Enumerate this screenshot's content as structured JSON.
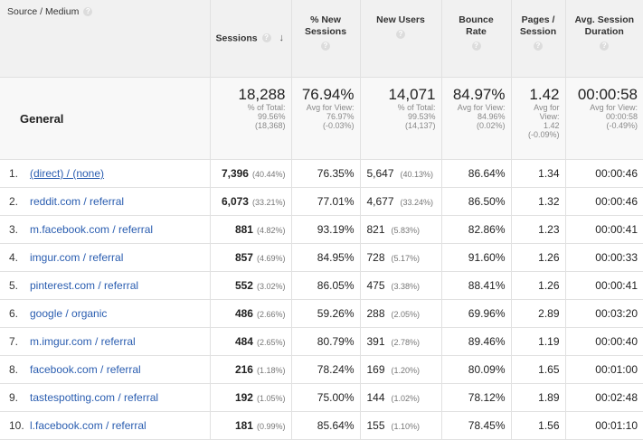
{
  "header": {
    "source": "Source / Medium",
    "sessions": "Sessions",
    "new_sessions": "% New Sessions",
    "new_users": "New Users",
    "bounce_rate": "Bounce Rate",
    "pages_session": "Pages / Session",
    "avg_duration": "Avg. Session Duration"
  },
  "summary": {
    "label": "General",
    "sessions": {
      "value": "18,288",
      "l1": "% of Total:",
      "l2": "99.56%",
      "l3": "(18,368)"
    },
    "new_sessions": {
      "value": "76.94%",
      "l1": "Avg for View:",
      "l2": "76.97%",
      "l3": "(-0.03%)"
    },
    "new_users": {
      "value": "14,071",
      "l1": "% of Total:",
      "l2": "99.53%",
      "l3": "(14,137)"
    },
    "bounce_rate": {
      "value": "84.97%",
      "l1": "Avg for View:",
      "l2": "84.96%",
      "l3": "(0.02%)"
    },
    "pages_session": {
      "value": "1.42",
      "l1": "Avg for",
      "l2": "View:",
      "l3": "1.42",
      "l4": "(-0.09%)"
    },
    "avg_duration": {
      "value": "00:00:58",
      "l1": "Avg for View:",
      "l2": "00:00:58",
      "l3": "(-0.49%)"
    }
  },
  "rows": [
    {
      "num": "1.",
      "source": "(direct) / (none)",
      "sessions": "7,396",
      "sessions_pct": "(40.44%)",
      "new_sessions": "76.35%",
      "new_users": "5,647",
      "new_users_pct": "(40.13%)",
      "bounce": "86.64%",
      "pages": "1.34",
      "duration": "00:00:46"
    },
    {
      "num": "2.",
      "source": "reddit.com / referral",
      "sessions": "6,073",
      "sessions_pct": "(33.21%)",
      "new_sessions": "77.01%",
      "new_users": "4,677",
      "new_users_pct": "(33.24%)",
      "bounce": "86.50%",
      "pages": "1.32",
      "duration": "00:00:46"
    },
    {
      "num": "3.",
      "source": "m.facebook.com / referral",
      "sessions": "881",
      "sessions_pct": "(4.82%)",
      "new_sessions": "93.19%",
      "new_users": "821",
      "new_users_pct": "(5.83%)",
      "bounce": "82.86%",
      "pages": "1.23",
      "duration": "00:00:41"
    },
    {
      "num": "4.",
      "source": "imgur.com / referral",
      "sessions": "857",
      "sessions_pct": "(4.69%)",
      "new_sessions": "84.95%",
      "new_users": "728",
      "new_users_pct": "(5.17%)",
      "bounce": "91.60%",
      "pages": "1.26",
      "duration": "00:00:33"
    },
    {
      "num": "5.",
      "source": "pinterest.com / referral",
      "sessions": "552",
      "sessions_pct": "(3.02%)",
      "new_sessions": "86.05%",
      "new_users": "475",
      "new_users_pct": "(3.38%)",
      "bounce": "88.41%",
      "pages": "1.26",
      "duration": "00:00:41"
    },
    {
      "num": "6.",
      "source": "google / organic",
      "sessions": "486",
      "sessions_pct": "(2.66%)",
      "new_sessions": "59.26%",
      "new_users": "288",
      "new_users_pct": "(2.05%)",
      "bounce": "69.96%",
      "pages": "2.89",
      "duration": "00:03:20"
    },
    {
      "num": "7.",
      "source": "m.imgur.com / referral",
      "sessions": "484",
      "sessions_pct": "(2.65%)",
      "new_sessions": "80.79%",
      "new_users": "391",
      "new_users_pct": "(2.78%)",
      "bounce": "89.46%",
      "pages": "1.19",
      "duration": "00:00:40"
    },
    {
      "num": "8.",
      "source": "facebook.com / referral",
      "sessions": "216",
      "sessions_pct": "(1.18%)",
      "new_sessions": "78.24%",
      "new_users": "169",
      "new_users_pct": "(1.20%)",
      "bounce": "80.09%",
      "pages": "1.65",
      "duration": "00:01:00"
    },
    {
      "num": "9.",
      "source": "tastespotting.com / referral",
      "sessions": "192",
      "sessions_pct": "(1.05%)",
      "new_sessions": "75.00%",
      "new_users": "144",
      "new_users_pct": "(1.02%)",
      "bounce": "78.12%",
      "pages": "1.89",
      "duration": "00:02:48"
    },
    {
      "num": "10.",
      "source": "l.facebook.com / referral",
      "sessions": "181",
      "sessions_pct": "(0.99%)",
      "new_sessions": "85.64%",
      "new_users": "155",
      "new_users_pct": "(1.10%)",
      "bounce": "78.45%",
      "pages": "1.56",
      "duration": "00:01:10"
    }
  ],
  "icons": {
    "help": "help-icon",
    "sort": "sort-down-arrow-icon"
  }
}
